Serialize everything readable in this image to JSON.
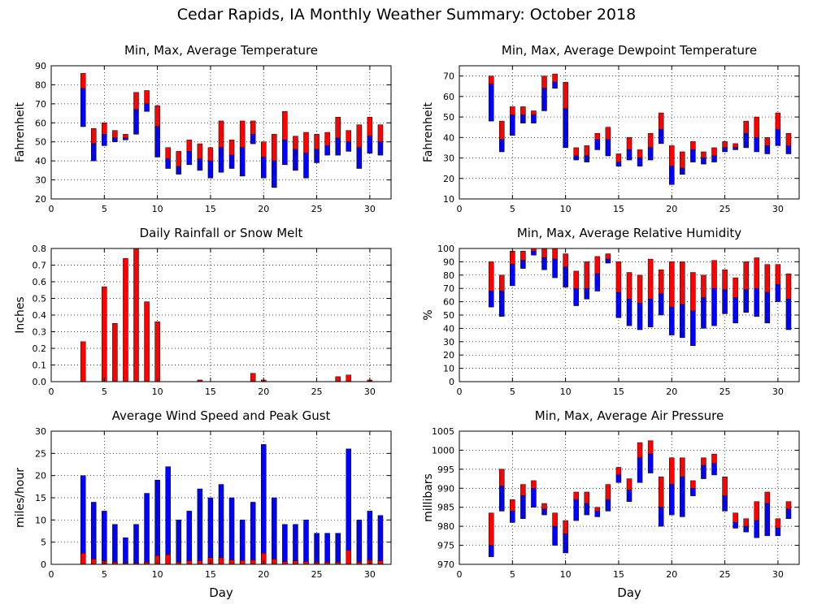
{
  "title": "Cedar Rapids, IA Monthly Weather Summary: October 2018",
  "colors": {
    "red": "#ff0000",
    "blue": "#0000ff",
    "frame": "#000000",
    "grid": "#000000"
  },
  "chart_data": [
    {
      "type": "bar",
      "title": "Min, Max, Average Temperature",
      "xlabel": "",
      "ylabel": "Fahrenheit",
      "xlim": [
        0,
        32
      ],
      "ylim": [
        20,
        90
      ],
      "xticks": [
        0,
        5,
        10,
        15,
        20,
        25,
        30
      ],
      "yticks": [
        20,
        30,
        40,
        50,
        60,
        70,
        80,
        90
      ],
      "grid": true,
      "series": [
        {
          "kind": "minmaxavg",
          "days": [
            3,
            4,
            5,
            6,
            7,
            8,
            9,
            10,
            11,
            12,
            13,
            14,
            15,
            16,
            17,
            18,
            19,
            20,
            21,
            22,
            23,
            24,
            25,
            26,
            27,
            28,
            29,
            30,
            31
          ],
          "max": [
            86,
            57,
            60,
            56,
            54,
            76,
            77,
            69,
            47,
            45,
            51,
            49,
            47,
            61,
            51,
            61,
            61,
            50,
            54,
            66,
            53,
            55,
            54,
            55,
            63,
            56,
            59,
            63,
            59
          ],
          "min": [
            58,
            40,
            48,
            50,
            51,
            54,
            66,
            42,
            36,
            33,
            38,
            35,
            31,
            34,
            36,
            32,
            49,
            31,
            26,
            38,
            35,
            31,
            39,
            43,
            43,
            45,
            36,
            44,
            43
          ],
          "avg": [
            78,
            49,
            54,
            52,
            52,
            67,
            70,
            58,
            41,
            37,
            45,
            41,
            40,
            47,
            43,
            47,
            54,
            42,
            40,
            51,
            46,
            44,
            46,
            48,
            52,
            50,
            47,
            53,
            50
          ]
        }
      ]
    },
    {
      "type": "bar",
      "title": "Min, Max, Average Dewpoint Temperature",
      "xlabel": "",
      "ylabel": "Fahrenheit",
      "xlim": [
        0,
        32
      ],
      "ylim": [
        10,
        75
      ],
      "xticks": [
        0,
        5,
        10,
        15,
        20,
        25,
        30
      ],
      "yticks": [
        10,
        20,
        30,
        40,
        50,
        60,
        70
      ],
      "grid": true,
      "series": [
        {
          "kind": "minmaxavg",
          "days": [
            3,
            4,
            5,
            6,
            7,
            8,
            9,
            10,
            11,
            12,
            13,
            14,
            15,
            16,
            17,
            18,
            19,
            20,
            21,
            22,
            23,
            24,
            25,
            26,
            27,
            28,
            29,
            30,
            31
          ],
          "max": [
            70,
            48,
            55,
            55,
            53,
            70,
            71,
            67,
            35,
            36,
            42,
            45,
            32,
            40,
            34,
            42,
            52,
            36,
            33,
            38,
            33,
            35,
            38,
            37,
            48,
            50,
            40,
            52,
            42
          ],
          "min": [
            48,
            33,
            41,
            47,
            47,
            53,
            64,
            35,
            29,
            28,
            34,
            31,
            26,
            29,
            26,
            29,
            37,
            17,
            22,
            28,
            27,
            28,
            33,
            34,
            35,
            33,
            32,
            36,
            32
          ],
          "avg": [
            66,
            39,
            51,
            51,
            51,
            64,
            67,
            54,
            31,
            31,
            39,
            39,
            28,
            34,
            30,
            35,
            44,
            26,
            25,
            34,
            30,
            31,
            35,
            35,
            42,
            40,
            36,
            44,
            36
          ]
        }
      ]
    },
    {
      "type": "bar",
      "title": "Daily Rainfall or Snow Melt",
      "xlabel": "",
      "ylabel": "Inches",
      "xlim": [
        0,
        32
      ],
      "ylim": [
        0,
        0.8
      ],
      "xticks": [
        0,
        5,
        10,
        15,
        20,
        25,
        30
      ],
      "yticks": [
        0.0,
        0.1,
        0.2,
        0.3,
        0.4,
        0.5,
        0.6,
        0.7,
        0.8
      ],
      "ytick_labels": [
        "0.0",
        "0.1",
        "0.2",
        "0.3",
        "0.4",
        "0.5",
        "0.6",
        "0.7",
        "0.8"
      ],
      "grid": true,
      "series": [
        {
          "kind": "bars",
          "days": [
            3,
            5,
            6,
            7,
            8,
            9,
            10,
            14,
            19,
            20,
            27,
            28,
            30
          ],
          "values": [
            0.24,
            0.57,
            0.35,
            0.74,
            0.8,
            0.48,
            0.36,
            0.01,
            0.05,
            0.01,
            0.03,
            0.04,
            0.01
          ]
        }
      ]
    },
    {
      "type": "bar",
      "title": "Min, Max, Average Relative Humidity",
      "xlabel": "",
      "ylabel": "%",
      "xlim": [
        0,
        32
      ],
      "ylim": [
        0,
        100
      ],
      "xticks": [
        0,
        5,
        10,
        15,
        20,
        25,
        30
      ],
      "yticks": [
        0,
        10,
        20,
        30,
        40,
        50,
        60,
        70,
        80,
        90,
        100
      ],
      "grid": true,
      "series": [
        {
          "kind": "minmaxavg",
          "days": [
            3,
            4,
            5,
            6,
            7,
            8,
            9,
            10,
            11,
            12,
            13,
            14,
            15,
            16,
            17,
            18,
            19,
            20,
            21,
            22,
            23,
            24,
            25,
            26,
            27,
            28,
            29,
            30,
            31
          ],
          "max": [
            90,
            80,
            98,
            98,
            100,
            100,
            100,
            96,
            83,
            90,
            94,
            96,
            90,
            82,
            80,
            92,
            84,
            90,
            90,
            82,
            80,
            91,
            84,
            78,
            90,
            93,
            88,
            88,
            81
          ],
          "min": [
            56,
            49,
            72,
            85,
            95,
            84,
            78,
            71,
            57,
            62,
            68,
            89,
            48,
            42,
            39,
            41,
            50,
            35,
            33,
            27,
            40,
            42,
            51,
            44,
            52,
            49,
            44,
            60,
            39
          ],
          "avg": [
            68,
            68,
            88,
            91,
            98,
            93,
            92,
            86,
            70,
            70,
            81,
            92,
            67,
            62,
            59,
            62,
            66,
            56,
            58,
            53,
            63,
            70,
            69,
            63,
            69,
            70,
            67,
            73,
            62
          ]
        }
      ]
    },
    {
      "type": "bar",
      "title": "Average Wind Speed and Peak Gust",
      "xlabel": "Day",
      "ylabel": "miles/hour",
      "xlim": [
        0,
        32
      ],
      "ylim": [
        0,
        30
      ],
      "xticks": [
        0,
        5,
        10,
        15,
        20,
        25,
        30
      ],
      "yticks": [
        0,
        5,
        10,
        15,
        20,
        25,
        30
      ],
      "grid": true,
      "series": [
        {
          "kind": "gust_avg",
          "days": [
            3,
            4,
            5,
            6,
            7,
            8,
            9,
            10,
            11,
            12,
            13,
            14,
            15,
            16,
            17,
            18,
            19,
            20,
            21,
            22,
            23,
            24,
            25,
            26,
            27,
            28,
            29,
            30,
            31
          ],
          "gust": [
            20,
            14,
            12,
            9,
            6,
            9,
            16,
            19,
            22,
            10,
            12,
            17,
            15,
            18,
            15,
            10,
            14,
            27,
            15,
            9,
            9,
            10,
            7,
            7,
            7,
            26,
            10,
            12,
            11
          ],
          "avg": [
            2.5,
            1.2,
            0.8,
            0.5,
            0.3,
            0.3,
            0.5,
            2.0,
            2.2,
            0.5,
            0.8,
            0.8,
            1.5,
            1.5,
            1.0,
            0.9,
            1.0,
            2.5,
            1.2,
            0.6,
            0.8,
            0.6,
            0.5,
            0.5,
            0.5,
            3.2,
            0.5,
            1.0,
            0.8
          ]
        }
      ]
    },
    {
      "type": "bar",
      "title": "Min, Max, Average Air Pressure",
      "xlabel": "Day",
      "ylabel": "millibars",
      "xlim": [
        0,
        32
      ],
      "ylim": [
        970,
        1005
      ],
      "xticks": [
        0,
        5,
        10,
        15,
        20,
        25,
        30
      ],
      "yticks": [
        970,
        975,
        980,
        985,
        990,
        995,
        1000,
        1005
      ],
      "grid": true,
      "series": [
        {
          "kind": "minmaxavg",
          "days": [
            3,
            4,
            5,
            6,
            7,
            8,
            9,
            10,
            11,
            12,
            13,
            14,
            15,
            16,
            17,
            18,
            19,
            20,
            21,
            22,
            23,
            24,
            25,
            26,
            27,
            28,
            29,
            30,
            31
          ],
          "max": [
            983.5,
            995,
            987,
            991,
            992,
            986,
            983.5,
            981.5,
            989,
            989,
            985,
            991,
            995.5,
            992.5,
            1002,
            1002.5,
            993,
            998,
            998,
            992,
            998,
            999,
            993,
            983.5,
            982,
            986.5,
            989,
            982,
            986.5
          ],
          "min": [
            972,
            984,
            981,
            982,
            985,
            983,
            975,
            973,
            981.5,
            983,
            982.5,
            984,
            991.5,
            986.5,
            991.5,
            994,
            980,
            983,
            982.5,
            988,
            992.5,
            993.5,
            984,
            979.5,
            978.5,
            977,
            977.5,
            977.5,
            982
          ],
          "avg": [
            975,
            990.5,
            984,
            988,
            990,
            984.5,
            980,
            978,
            987,
            986,
            984,
            987,
            993.5,
            989.5,
            998,
            999,
            985,
            991,
            993,
            990,
            996,
            996.5,
            988,
            981,
            980,
            981.5,
            986,
            979.5,
            984.5
          ]
        }
      ]
    }
  ]
}
